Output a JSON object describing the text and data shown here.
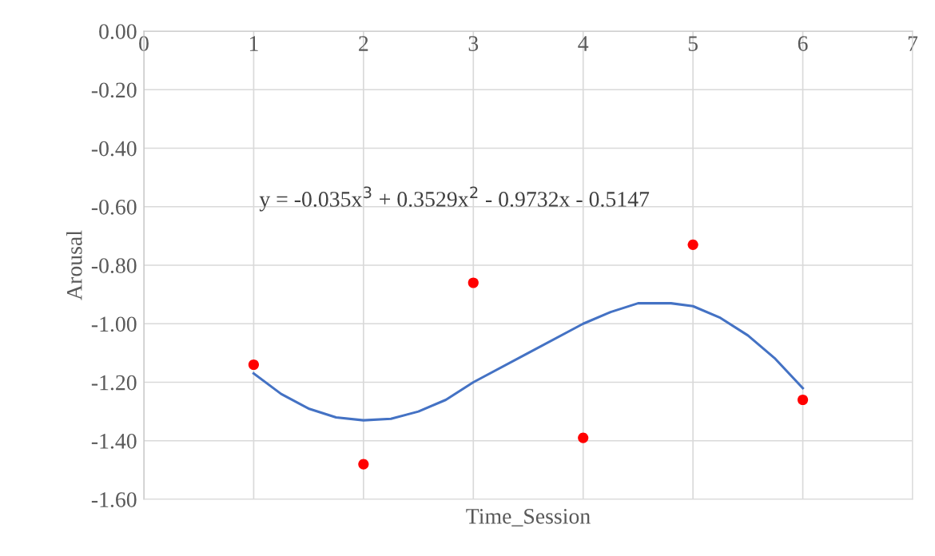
{
  "chart_data": {
    "type": "scatter",
    "xlabel": "Time_Session",
    "ylabel": "Arousal",
    "annotations": [
      "y = -0.035x$^{3}$ + 0.3529x$^{2}$ - 0.9732x - 0.5147"
    ],
    "xlim": [
      0,
      7
    ],
    "xticks": [
      0,
      1,
      2,
      3,
      4,
      5,
      6,
      7
    ],
    "ylim": [
      -1.6,
      0
    ],
    "yticks": [
      {
        "value": 0,
        "label": "0.00"
      },
      {
        "value": -0.2,
        "label": "-0.20"
      },
      {
        "value": -0.4,
        "label": "-0.40"
      },
      {
        "value": -0.6,
        "label": "-0.60"
      },
      {
        "value": -0.8,
        "label": "-0.80"
      },
      {
        "value": -1.0,
        "label": "-1.00"
      },
      {
        "value": -1.2,
        "label": "-1.20"
      },
      {
        "value": -1.4,
        "label": "-1.40"
      },
      {
        "value": -1.6,
        "label": "-1.60"
      }
    ],
    "grid": true,
    "legend": false,
    "series": [
      {
        "color": "#ff0000",
        "marker": "circle",
        "x": [
          1,
          2,
          3,
          4,
          5,
          6
        ],
        "values": [
          -1.14,
          -1.48,
          -0.86,
          -1.39,
          -0.73,
          -1.26
        ]
      },
      {
        "type": "line",
        "color": "#4472c4",
        "marker": "none",
        "line_style": "solid",
        "x": [
          1,
          1.25,
          1.5,
          1.75,
          2,
          2.25,
          2.5,
          2.75,
          3,
          3.5,
          4,
          4.25,
          4.5,
          4.8,
          5,
          5.25,
          5.5,
          5.75,
          6
        ],
        "values": [
          -1.17,
          -1.24,
          -1.29,
          -1.32,
          -1.33,
          -1.325,
          -1.3,
          -1.26,
          -1.2,
          -1.1,
          -1.0,
          -0.96,
          -0.93,
          -0.93,
          -0.94,
          -0.98,
          -1.04,
          -1.12,
          -1.22
        ]
      }
    ]
  }
}
